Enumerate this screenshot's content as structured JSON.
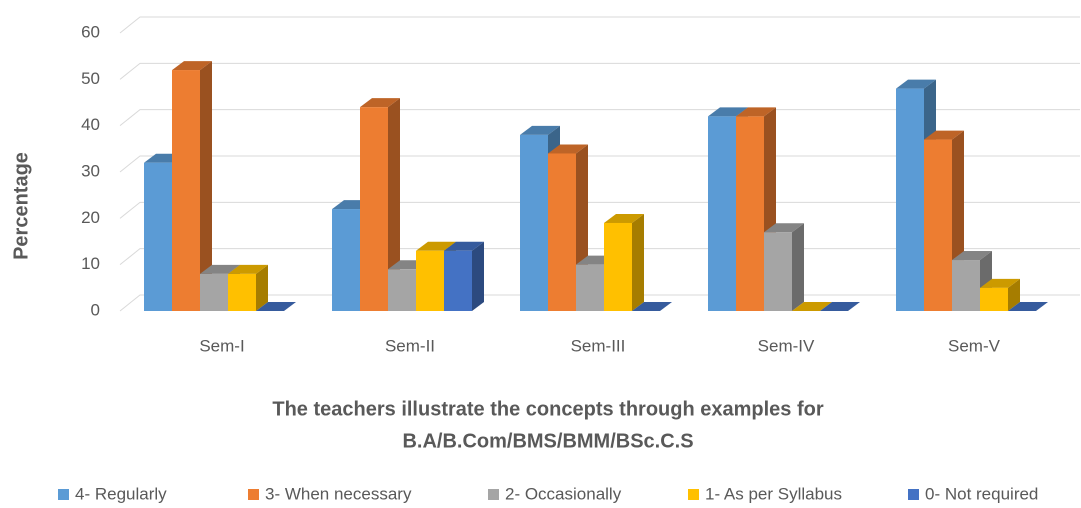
{
  "chart_data": {
    "type": "bar3d",
    "ylabel": "Percentage",
    "xlabel": [
      "The teachers illustrate the concepts through examples for",
      "B.A/B.Com/BMS/BMM/BSc.C.S"
    ],
    "categories": [
      "Sem-I",
      "Sem-II",
      "Sem-III",
      "Sem-IV",
      "Sem-V"
    ],
    "series": [
      {
        "name": "4- Regularly",
        "color": "#5b9bd5",
        "values": [
          32,
          22,
          38,
          42,
          48
        ]
      },
      {
        "name": "3- When necessary",
        "color": "#ed7d31",
        "values": [
          52,
          44,
          34,
          42,
          37
        ]
      },
      {
        "name": "2- Occasionally",
        "color": "#a5a5a5",
        "values": [
          8,
          9,
          10,
          17,
          11
        ]
      },
      {
        "name": "1- As per Syllabus",
        "color": "#ffc000",
        "values": [
          8,
          13,
          19,
          0,
          5
        ]
      },
      {
        "name": "0- Not required",
        "color": "#4472c4",
        "values": [
          0,
          13,
          0,
          0,
          0
        ]
      }
    ],
    "ylim": [
      0,
      60
    ],
    "yticks": [
      0,
      10,
      20,
      30,
      40,
      50,
      60
    ],
    "grid": true,
    "legend": "bottom"
  }
}
